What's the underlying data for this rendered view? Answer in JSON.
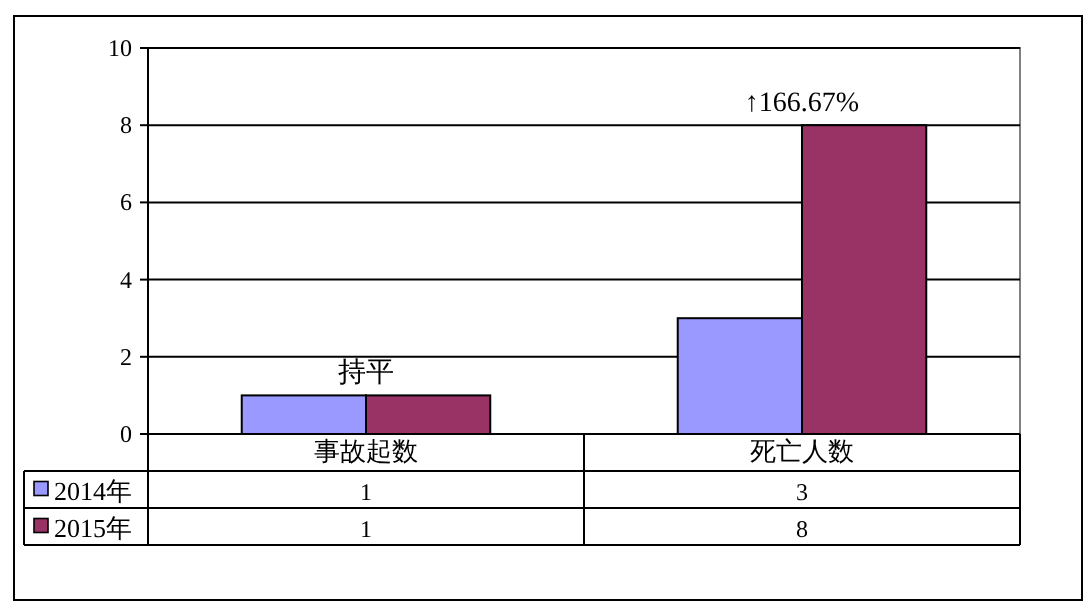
{
  "chart_data": {
    "type": "bar",
    "categories": [
      "事故起数",
      "死亡人数"
    ],
    "series": [
      {
        "name": "2014年",
        "color": "#9999ff",
        "values": [
          1,
          3
        ]
      },
      {
        "name": "2015年",
        "color": "#993366",
        "values": [
          1,
          8
        ]
      }
    ],
    "ylim": [
      0,
      10
    ],
    "yticks": [
      0,
      2,
      4,
      6,
      8,
      10
    ],
    "grid": "y",
    "legend": "bottom",
    "data_labels": true,
    "annotations": [
      {
        "text": "持平",
        "x": "事故起数",
        "y": 1
      },
      {
        "text": "↑166.67%",
        "x": "死亡人数",
        "y": 8
      }
    ]
  }
}
